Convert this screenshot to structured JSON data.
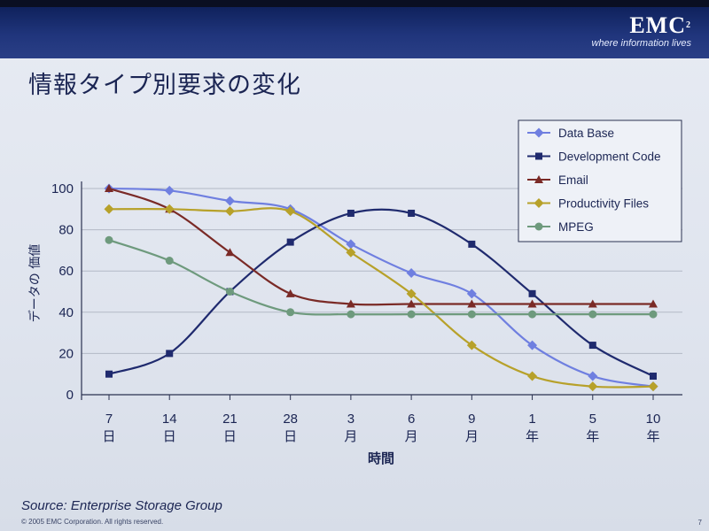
{
  "header": {
    "logo": "EMC",
    "logo_sup": "2",
    "tagline": "where information lives"
  },
  "slide": {
    "title": "情報タイプ別要求の変化",
    "source": "Source: Enterprise Storage Group",
    "copyright": "© 2005 EMC Corporation. All rights reserved.",
    "page_number": "7"
  },
  "chart_data": {
    "type": "line",
    "title": "",
    "xlabel": "時間",
    "ylabel": "データの 価値",
    "categories": [
      "7|日",
      "14|日",
      "21|日",
      "28|日",
      "3|月",
      "6|月",
      "9|月",
      "1|年",
      "5|年",
      "10|年"
    ],
    "ylim": [
      0,
      100
    ],
    "yticks": [
      0,
      20,
      40,
      60,
      80,
      100
    ],
    "grid": "horizontal",
    "legend_position": "top-right",
    "series": [
      {
        "name": "Data Base",
        "color": "#6f7fe0",
        "marker": "diamond",
        "values": [
          100,
          99,
          94,
          90,
          73,
          59,
          49,
          24,
          9,
          4
        ]
      },
      {
        "name": "Development Code",
        "color": "#1f2a6e",
        "marker": "square",
        "values": [
          10,
          20,
          50,
          74,
          88,
          88,
          73,
          49,
          24,
          9
        ]
      },
      {
        "name": "Email",
        "color": "#7a2a26",
        "marker": "triangle",
        "values": [
          100,
          90,
          69,
          49,
          44,
          44,
          44,
          44,
          44,
          44
        ]
      },
      {
        "name": "Productivity Files",
        "color": "#b7a12a",
        "marker": "diamond",
        "values": [
          90,
          90,
          89,
          89,
          69,
          49,
          24,
          9,
          4,
          4
        ]
      },
      {
        "name": "MPEG",
        "color": "#6e9a7d",
        "marker": "circle",
        "values": [
          75,
          65,
          50,
          40,
          39,
          39,
          39,
          39,
          39,
          39
        ]
      }
    ]
  }
}
